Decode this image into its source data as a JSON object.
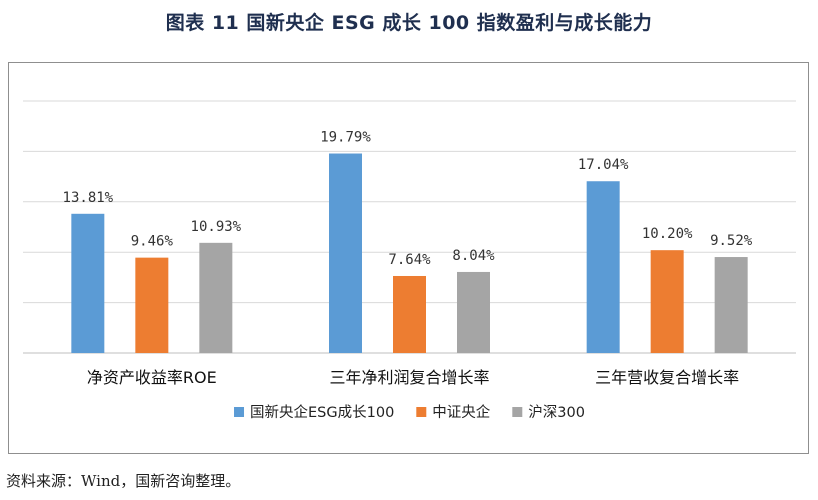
{
  "figure": {
    "title": "图表 11 国新央企 ESG 成长 100 指数盈利与成长能力",
    "source_note": "资料来源：Wind，国新咨询整理。"
  },
  "chart_data": {
    "type": "bar",
    "categories": [
      "净资产收益率ROE",
      "三年净利润复合增长率",
      "三年营收复合增长率"
    ],
    "series": [
      {
        "name": "国新央企ESG成长100",
        "color": "#5b9bd5",
        "values": [
          13.81,
          19.79,
          17.04
        ],
        "labels": [
          "13.81%",
          "19.79%",
          "17.04%"
        ]
      },
      {
        "name": "中证央企",
        "color": "#ed7d31",
        "values": [
          9.46,
          7.64,
          10.2
        ],
        "labels": [
          "9.46%",
          "7.64%",
          "10.20%"
        ]
      },
      {
        "name": "沪深300",
        "color": "#a5a5a5",
        "values": [
          10.93,
          8.04,
          9.52
        ],
        "labels": [
          "10.93%",
          "8.04%",
          "9.52%"
        ]
      }
    ],
    "ylim": [
      0,
      25
    ],
    "ytick_step": 5,
    "grid": true,
    "legend_position": "bottom"
  }
}
